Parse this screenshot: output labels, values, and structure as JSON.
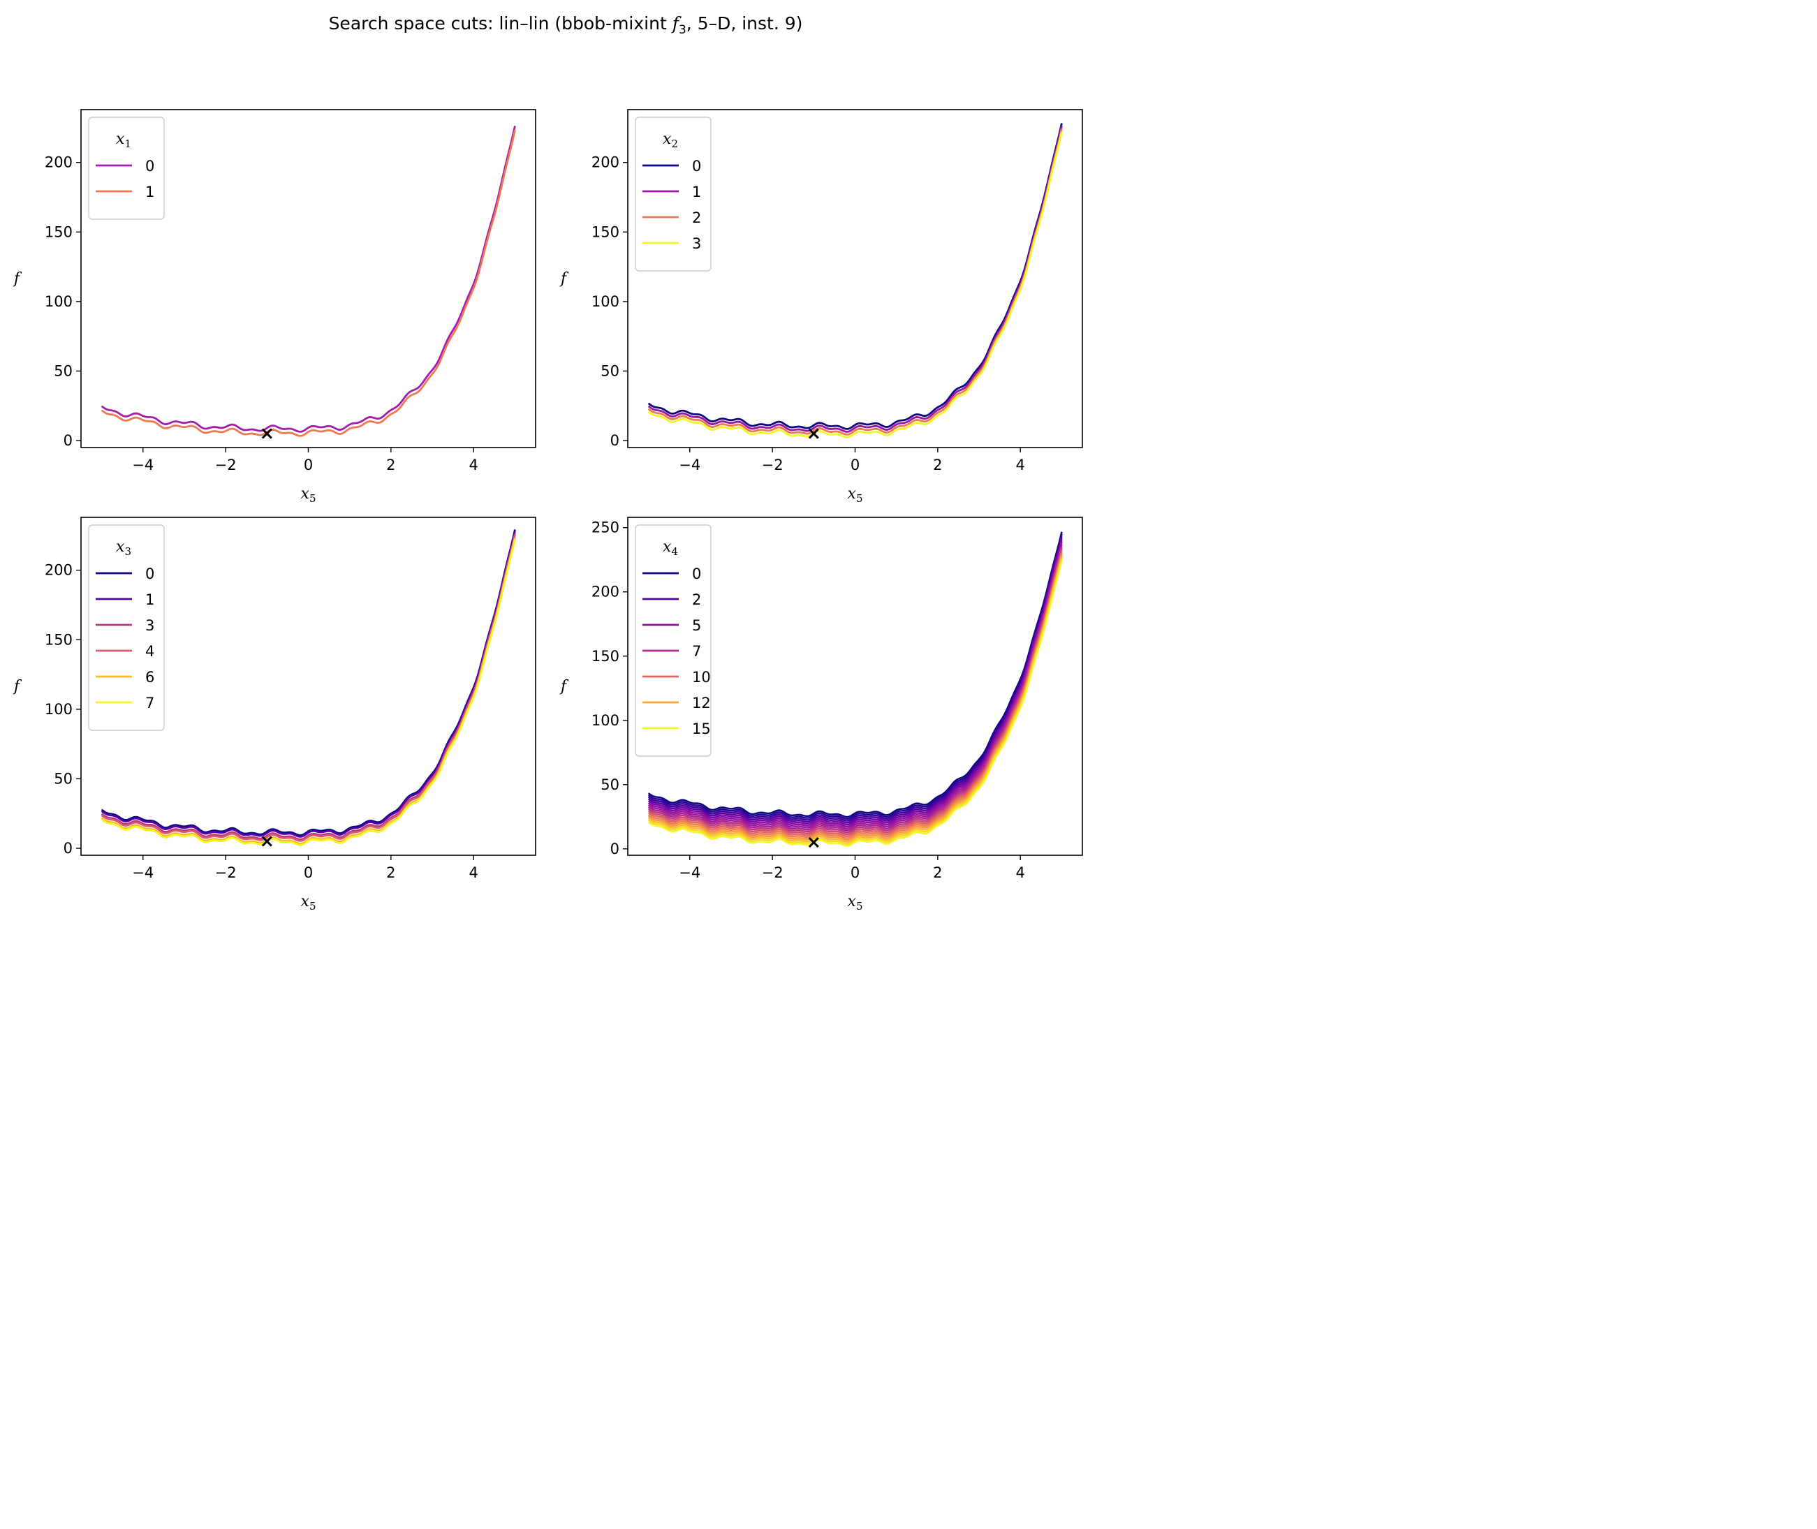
{
  "title": {
    "prefix": "Search space cuts: lin–lin (bbob-mixint ",
    "func": "f",
    "func_sub": "3",
    "suffix": ", 5–D, inst. 9)"
  },
  "chart_data": [
    {
      "type": "line",
      "xlabel": "x",
      "xlabel_sub": "5",
      "ylabel": "f",
      "xlim": [
        -5.5,
        5.5
      ],
      "ylim": [
        -5,
        238
      ],
      "xticks": [
        -4,
        -2,
        0,
        2,
        4
      ],
      "yticks": [
        0,
        50,
        100,
        150,
        200
      ],
      "grid": false,
      "legend": {
        "title": "x",
        "title_sub": "1",
        "position": "top-left"
      },
      "optimum_marker": {
        "x": -1,
        "y": 5
      },
      "curve_model": {
        "scale": 220,
        "exponent": 4,
        "center": -1,
        "base_min": 5.5,
        "wiggle_amplitude": 1.5
      },
      "series": [
        {
          "name": "0",
          "color": "#a21caf",
          "offset": 3
        },
        {
          "name": "1",
          "color": "#ed7953",
          "offset": 0
        }
      ]
    },
    {
      "type": "line",
      "xlabel": "x",
      "xlabel_sub": "5",
      "ylabel": "f",
      "xlim": [
        -5.5,
        5.5
      ],
      "ylim": [
        -5,
        238
      ],
      "xticks": [
        -4,
        -2,
        0,
        2,
        4
      ],
      "yticks": [
        0,
        50,
        100,
        150,
        200
      ],
      "grid": false,
      "legend": {
        "title": "x",
        "title_sub": "2",
        "position": "top-left"
      },
      "optimum_marker": {
        "x": -1,
        "y": 5
      },
      "curve_model": {
        "scale": 220,
        "exponent": 4,
        "center": -1,
        "base_min": 4.5,
        "wiggle_amplitude": 1.5
      },
      "series": [
        {
          "name": "0",
          "color": "#0d0887",
          "offset": 6
        },
        {
          "name": "1",
          "color": "#9c179e",
          "offset": 4
        },
        {
          "name": "2",
          "color": "#ed7953",
          "offset": 2
        },
        {
          "name": "3",
          "color": "#f0f921",
          "offset": 0
        }
      ]
    },
    {
      "type": "line",
      "xlabel": "x",
      "xlabel_sub": "5",
      "ylabel": "f",
      "xlim": [
        -5.5,
        5.5
      ],
      "ylim": [
        -5,
        238
      ],
      "xticks": [
        -4,
        -2,
        0,
        2,
        4
      ],
      "yticks": [
        0,
        50,
        100,
        150,
        200
      ],
      "grid": false,
      "legend": {
        "title": "x",
        "title_sub": "3",
        "position": "top-left"
      },
      "optimum_marker": {
        "x": -1,
        "y": 5
      },
      "curve_model": {
        "scale": 220,
        "exponent": 4,
        "center": -1,
        "base_min": 4.5,
        "wiggle_amplitude": 1.5
      },
      "series": [
        {
          "name": "0",
          "color": "#0d0887",
          "offset": 7
        },
        {
          "name": "1",
          "color": "#5302a3",
          "offset": 6
        },
        {
          "name": "3",
          "color": "#b83289",
          "offset": 4
        },
        {
          "name": "4",
          "color": "#db5c68",
          "offset": 3
        },
        {
          "name": "6",
          "color": "#feb72d",
          "offset": 1
        },
        {
          "name": "7",
          "color": "#f0f921",
          "offset": 0
        }
      ]
    },
    {
      "type": "line",
      "xlabel": "x",
      "xlabel_sub": "5",
      "ylabel": "f",
      "xlim": [
        -5.5,
        5.5
      ],
      "ylim": [
        -5,
        258
      ],
      "xticks": [
        -4,
        -2,
        0,
        2,
        4
      ],
      "yticks": [
        0,
        50,
        100,
        150,
        200,
        250
      ],
      "grid": false,
      "legend": {
        "title": "x",
        "title_sub": "4",
        "position": "top-left"
      },
      "optimum_marker": {
        "x": -1,
        "y": 5
      },
      "curve_model": {
        "scale": 222,
        "exponent": 4,
        "center": -1,
        "base_min": 4.5,
        "wiggle_amplitude": 1.5,
        "offset_step": 1.5,
        "levels": 16
      },
      "series": [
        {
          "name": "0",
          "color": "#0d0887",
          "offset": 22.5
        },
        {
          "name": "2",
          "color": "#4c02a1",
          "offset": 19.5
        },
        {
          "name": "5",
          "color": "#8f0da4",
          "offset": 15
        },
        {
          "name": "7",
          "color": "#b12a90",
          "offset": 12
        },
        {
          "name": "10",
          "color": "#e16462",
          "offset": 7.5
        },
        {
          "name": "12",
          "color": "#fca636",
          "offset": 4.5
        },
        {
          "name": "15",
          "color": "#f0f921",
          "offset": 0
        }
      ]
    }
  ]
}
